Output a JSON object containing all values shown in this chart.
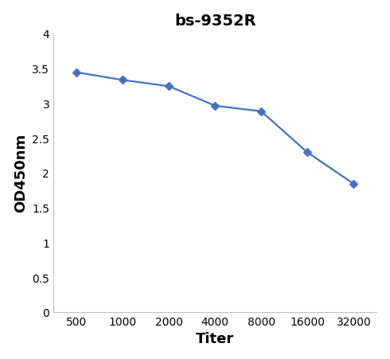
{
  "title": "bs-9352R",
  "xlabel": "Titer",
  "ylabel": "OD450nm",
  "x_values": [
    1,
    2,
    3,
    4,
    5,
    6,
    7
  ],
  "y_values": [
    3.44,
    3.33,
    3.24,
    2.96,
    2.88,
    2.29,
    1.84
  ],
  "x_labels": [
    "500",
    "1000",
    "2000",
    "4000",
    "8000",
    "16000",
    "32000"
  ],
  "line_color": "#4472C4",
  "marker": "D",
  "marker_size": 5,
  "line_width": 1.6,
  "ylim": [
    0,
    4
  ],
  "yticks": [
    0,
    0.5,
    1,
    1.5,
    2,
    2.5,
    3,
    3.5,
    4
  ],
  "title_fontsize": 14,
  "axis_label_fontsize": 13,
  "tick_fontsize": 10,
  "background_color": "#ffffff"
}
